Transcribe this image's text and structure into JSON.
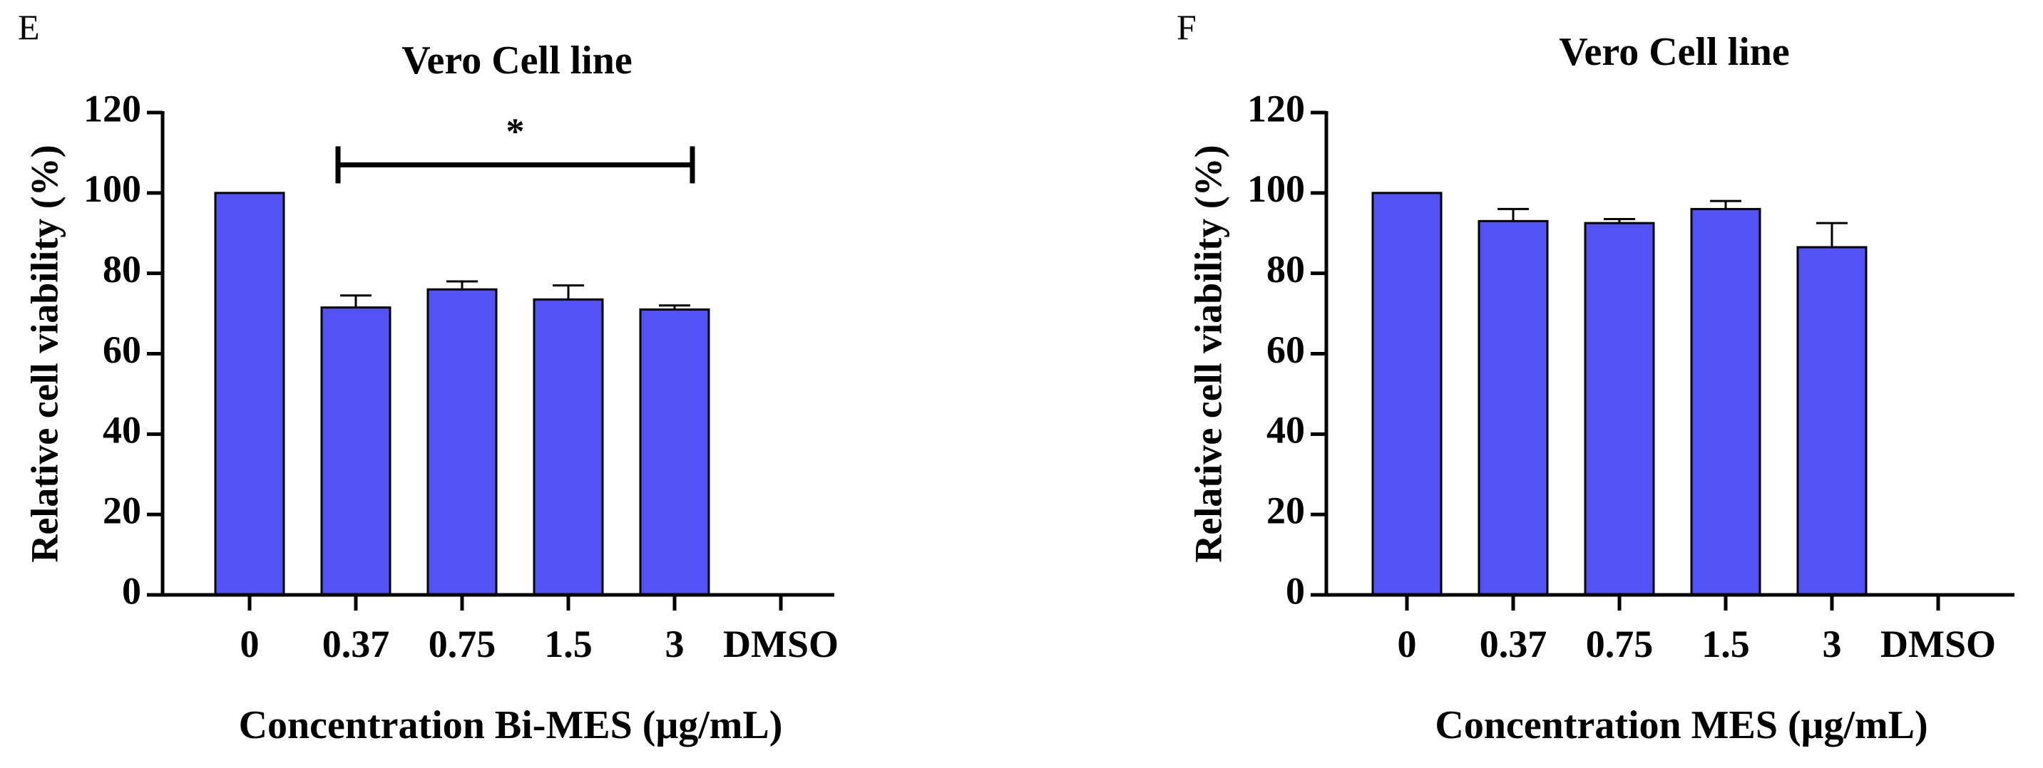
{
  "chart_data": [
    {
      "type": "bar",
      "panel_label": "E",
      "title": "Vero Cell line",
      "xlabel": "Concentration  Bi-MES (μg/mL)",
      "ylabel": "Relative cell viability (%)",
      "ylim": [
        0,
        120
      ],
      "yticks": [
        0,
        20,
        40,
        60,
        80,
        100,
        120
      ],
      "categories": [
        "0",
        "0.37",
        "0.75",
        "1.5",
        "3",
        "DMSO"
      ],
      "values": [
        100,
        71.5,
        76,
        73.5,
        71,
        null
      ],
      "errors": [
        0,
        3,
        2,
        3.5,
        1,
        null
      ],
      "bar_color": "#5353f5",
      "significance": {
        "label": "*",
        "from_category": "0.37",
        "to_category": "3",
        "y": 107
      }
    },
    {
      "type": "bar",
      "panel_label": "F",
      "title": "Vero Cell line",
      "xlabel": "Concentration MES (μg/mL)",
      "ylabel": "Relative cell viability (%)",
      "ylim": [
        0,
        120
      ],
      "yticks": [
        0,
        20,
        40,
        60,
        80,
        100,
        120
      ],
      "categories": [
        "0",
        "0.37",
        "0.75",
        "1.5",
        "3",
        "DMSO"
      ],
      "values": [
        100,
        93,
        92.5,
        96,
        86.5,
        null
      ],
      "errors": [
        0,
        3,
        1,
        2,
        6,
        null
      ],
      "bar_color": "#5353f5",
      "significance": null
    }
  ]
}
